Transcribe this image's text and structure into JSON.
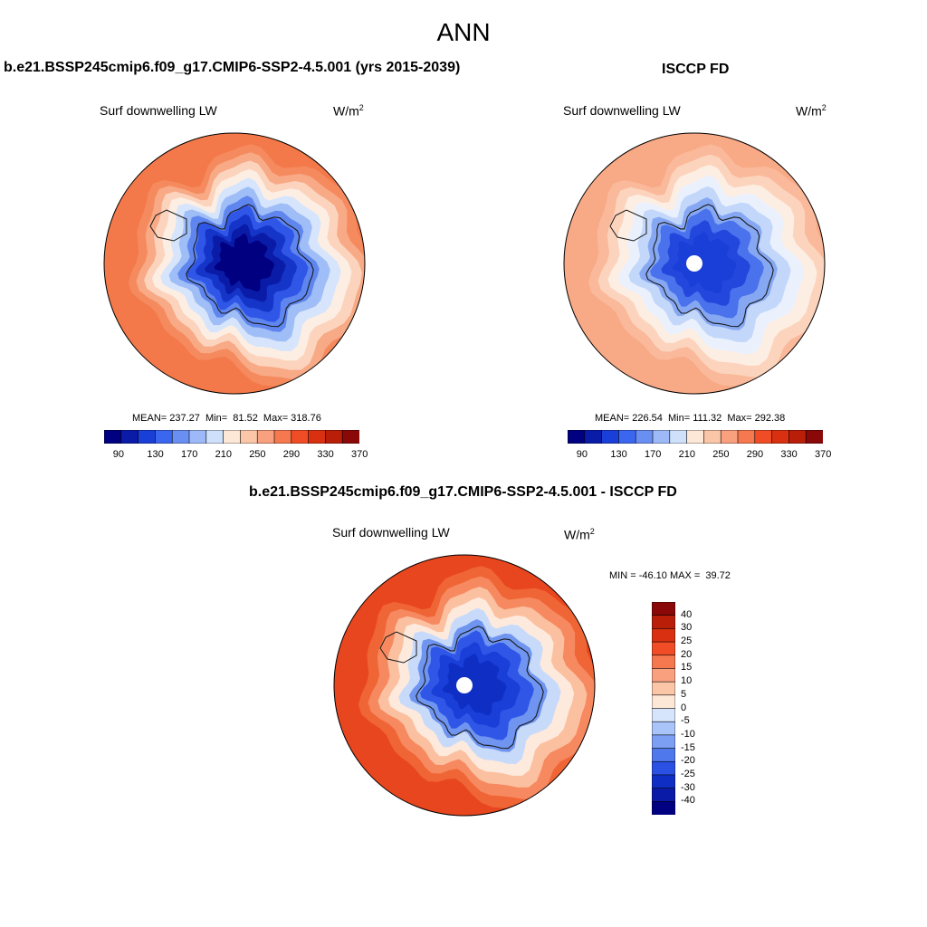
{
  "super_title": "ANN",
  "panels": [
    {
      "title": "b.e21.BSSP245cmip6.f09_g17.CMIP6-SSP2-4.5.001 (yrs 2015-2039)",
      "variable": "Surf downwelling LW",
      "units_base": "W/m",
      "units_exp": "2",
      "stats": "MEAN= 237.27  Min=  81.52  Max= 318.76",
      "colorbar": {
        "colors": [
          "#000080",
          "#0a1ba8",
          "#1a3ed8",
          "#3a66f0",
          "#6a8ff2",
          "#9db9f7",
          "#cfe0fb",
          "#fde8d8",
          "#fbc6a8",
          "#f9a07e",
          "#f6784f",
          "#f04d26",
          "#d83010",
          "#b81e08",
          "#8a0808"
        ],
        "labels": [
          "90",
          "130",
          "170",
          "210",
          "250",
          "290",
          "330",
          "370"
        ]
      },
      "map": {
        "ocean": "#f4794a",
        "rings": [
          "#f58a5e",
          "#f8a985",
          "#fcd4bd",
          "#fdeee4",
          "#d6e5fb",
          "#9fbdf6",
          "#5f86ef",
          "#2f56e6",
          "#1535c8",
          "#0a1ba8",
          "#000080"
        ]
      }
    },
    {
      "title": "ISCCP FD",
      "variable": "Surf downwelling LW",
      "units_base": "W/m",
      "units_exp": "2",
      "stats": "MEAN= 226.54  Min= 111.32  Max= 292.38",
      "colorbar": {
        "colors": [
          "#000080",
          "#0a1ba8",
          "#1a3ed8",
          "#3a66f0",
          "#6a8ff2",
          "#9db9f7",
          "#cfe0fb",
          "#fde8d8",
          "#fbc6a8",
          "#f9a07e",
          "#f6784f",
          "#f04d26",
          "#d83010",
          "#b81e08",
          "#8a0808"
        ],
        "labels": [
          "90",
          "130",
          "170",
          "210",
          "250",
          "290",
          "330",
          "370"
        ]
      },
      "map": {
        "ocean": "#f8a985",
        "rings": [
          "#fab99a",
          "#fcd4bd",
          "#fdeee4",
          "#eaf1fd",
          "#c3d7fa",
          "#86a8f3",
          "#4a72ec",
          "#2346dd",
          "#1a3ed8"
        ]
      }
    },
    {
      "title": "b.e21.BSSP245cmip6.f09_g17.CMIP6-SSP2-4.5.001 - ISCCP FD",
      "variable": "Surf downwelling LW",
      "units_base": "W/m",
      "units_exp": "2",
      "stats": "MIN = -46.10 MAX =  39.72",
      "colorbar": {
        "colors": [
          "#8a0808",
          "#b81e08",
          "#d83010",
          "#f04d26",
          "#f6784f",
          "#f9a07e",
          "#fbc6a8",
          "#fde8d8",
          "#d6e5fb",
          "#a9c4f8",
          "#7c9ff3",
          "#4f78ed",
          "#2a50e4",
          "#0f2fc4",
          "#0a1ba8",
          "#000080"
        ],
        "labels": [
          "40",
          "30",
          "25",
          "20",
          "15",
          "10",
          "5",
          "0",
          "-5",
          "-10",
          "-15",
          "-20",
          "-25",
          "-30",
          "-40"
        ]
      },
      "map": {
        "ocean": "#e8461e",
        "rings": [
          "#f06535",
          "#f6895f",
          "#fbc0a0",
          "#fdeadd",
          "#c8dafa",
          "#6f95f1",
          "#2f56e6",
          "#1a3ed8",
          "#0f2fc4"
        ]
      }
    }
  ]
}
